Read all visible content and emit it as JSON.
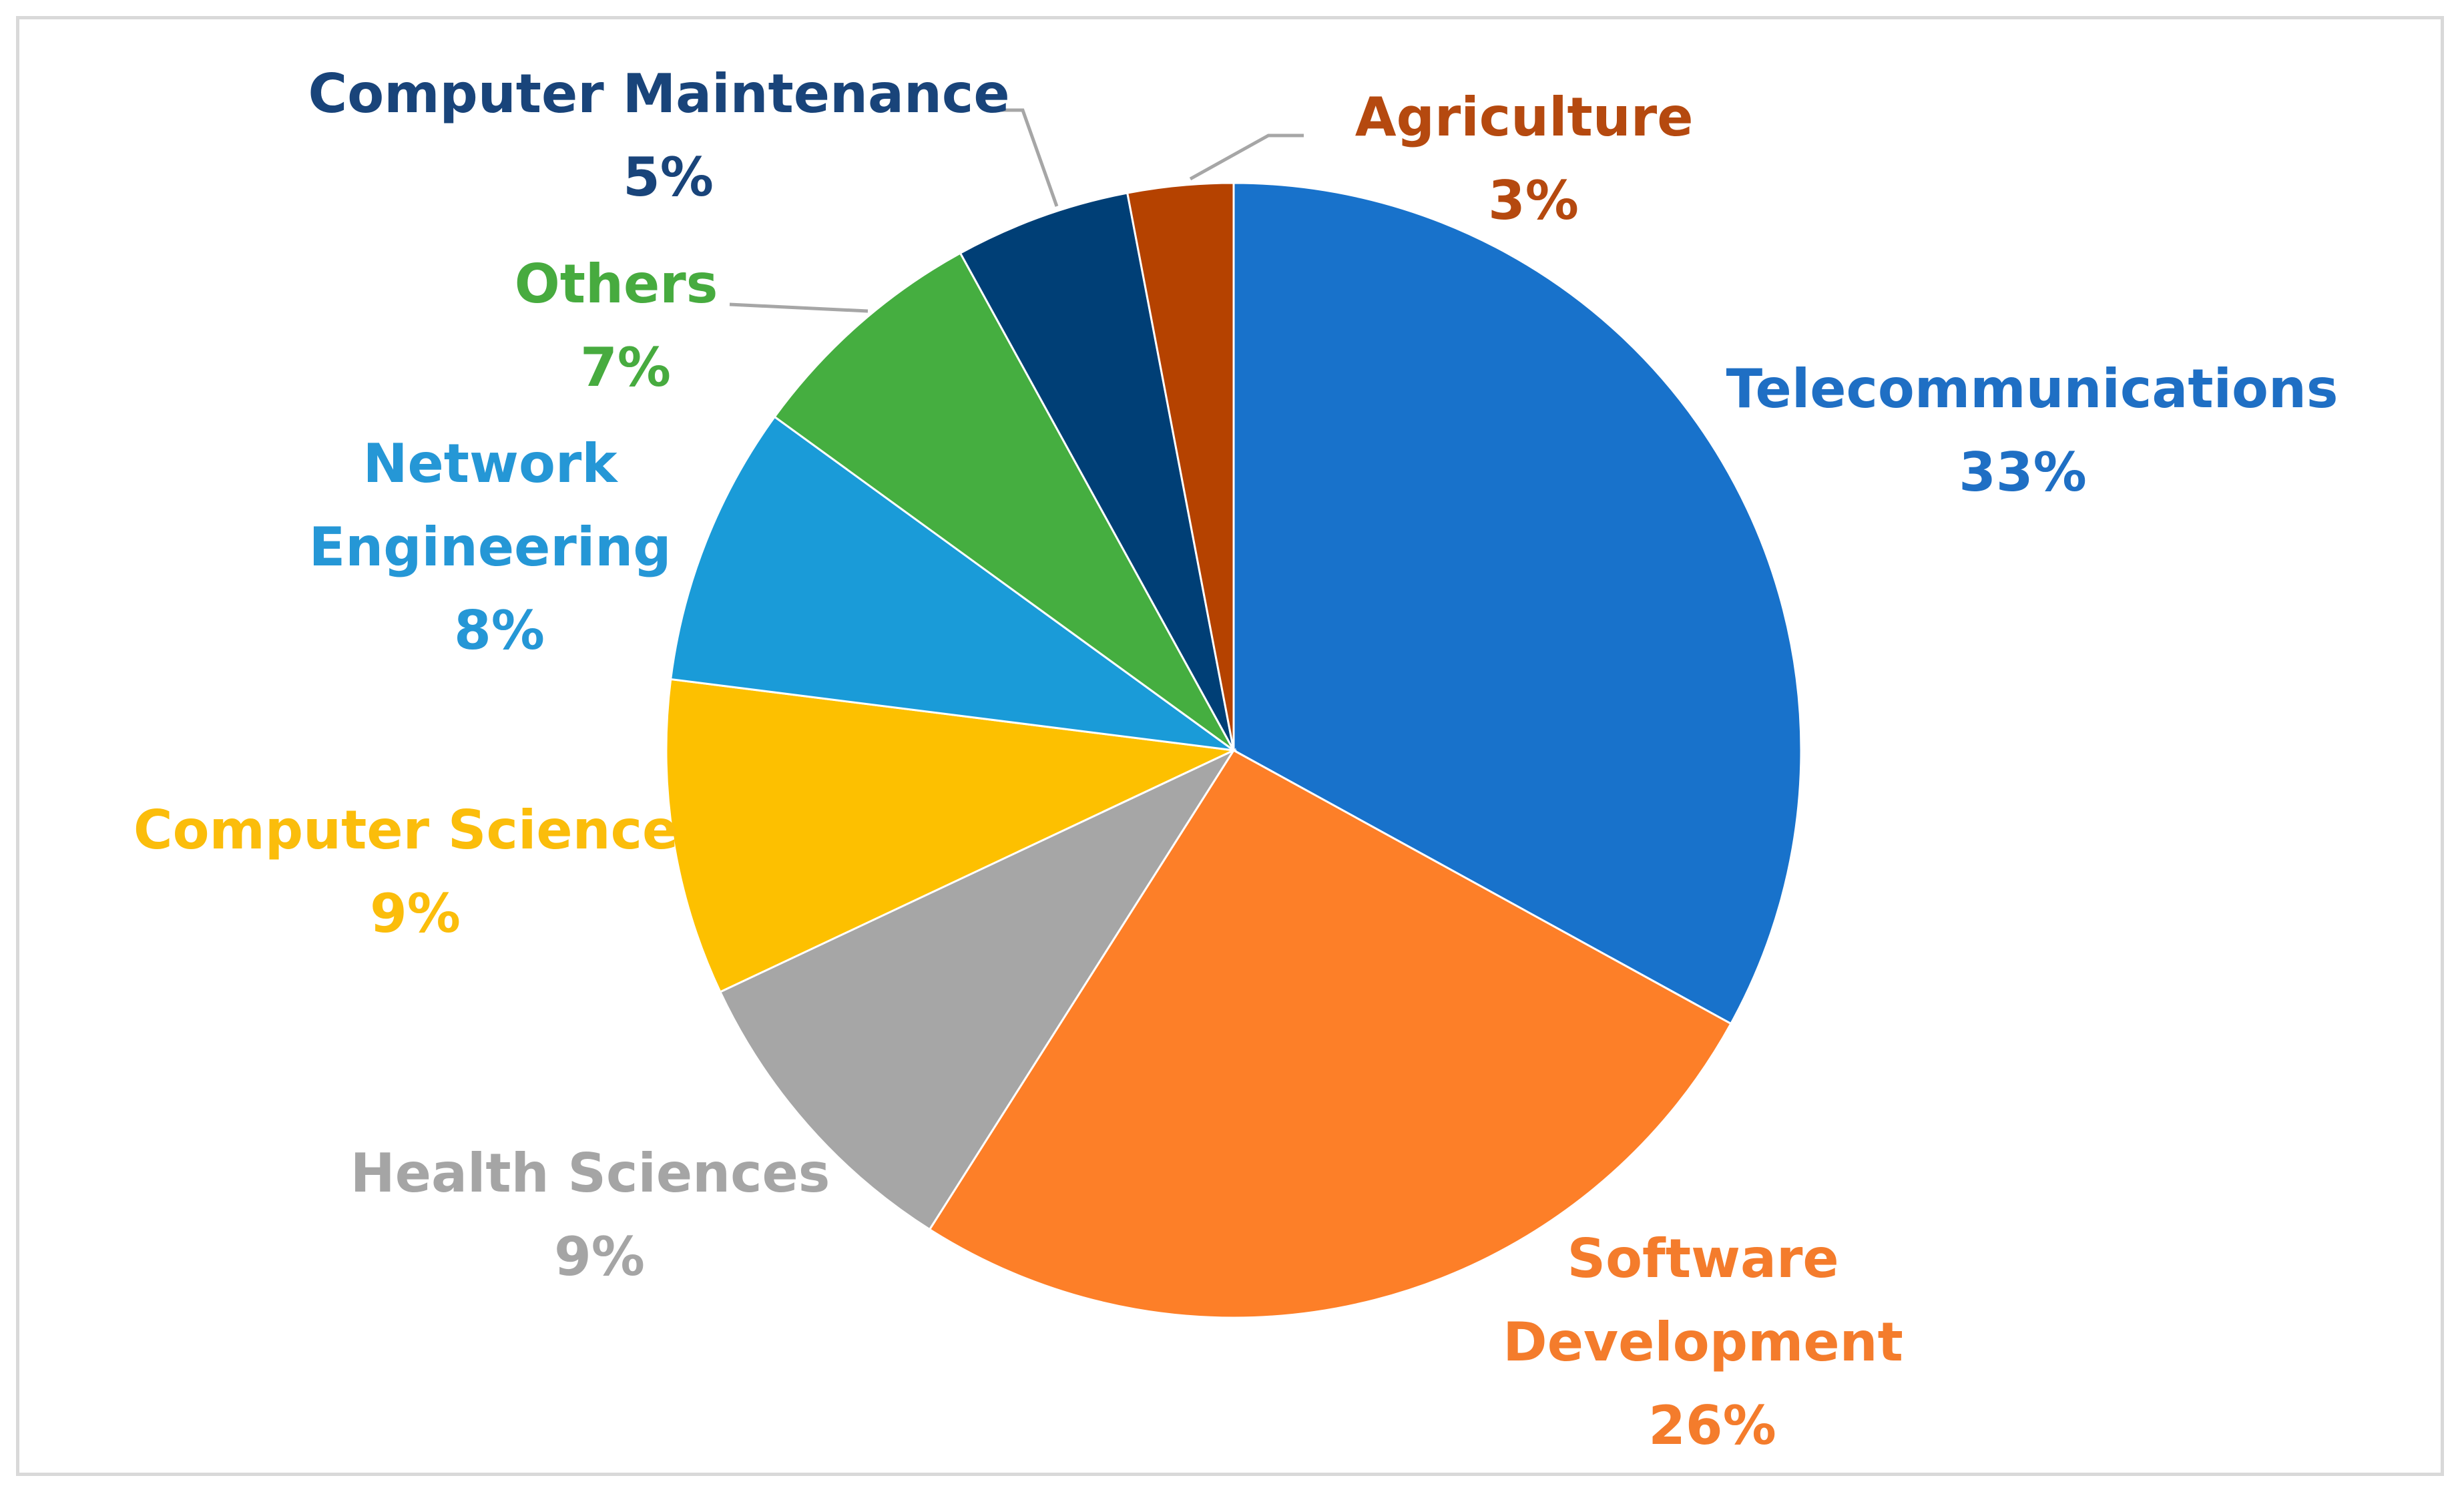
{
  "chart_data": {
    "type": "pie",
    "title": "",
    "unit": "%",
    "start_angle_deg": 0,
    "direction": "clockwise",
    "legend": "none",
    "slices": [
      {
        "label": "Telecommunications",
        "value": 33,
        "value_label": "33%",
        "color": "#1872cb",
        "label_color": "#1f6fc4"
      },
      {
        "label": "Software Development",
        "value": 26,
        "value_label": "26%",
        "color": "#fd7f28",
        "label_color": "#f47c2c"
      },
      {
        "label": "Health Sciences",
        "value": 9,
        "value_label": "9%",
        "color": "#a6a6a6",
        "label_color": "#a5a5a5"
      },
      {
        "label": "Computer Science",
        "value": 9,
        "value_label": "9%",
        "color": "#fdc000",
        "label_color": "#fbbd0b"
      },
      {
        "label": "Network Engineering",
        "value": 8,
        "value_label": "8%",
        "color": "#1a9bd8",
        "label_color": "#2597d6"
      },
      {
        "label": "Others",
        "value": 7,
        "value_label": "7%",
        "color": "#45ae40",
        "label_color": "#47ab3f"
      },
      {
        "label": "Computer Maintenance",
        "value": 5,
        "value_label": "5%",
        "color": "#003f76",
        "label_color": "#19447a"
      },
      {
        "label": "Agriculture",
        "value": 3,
        "value_label": "3%",
        "color": "#b54200",
        "label_color": "#b5490f"
      }
    ]
  }
}
